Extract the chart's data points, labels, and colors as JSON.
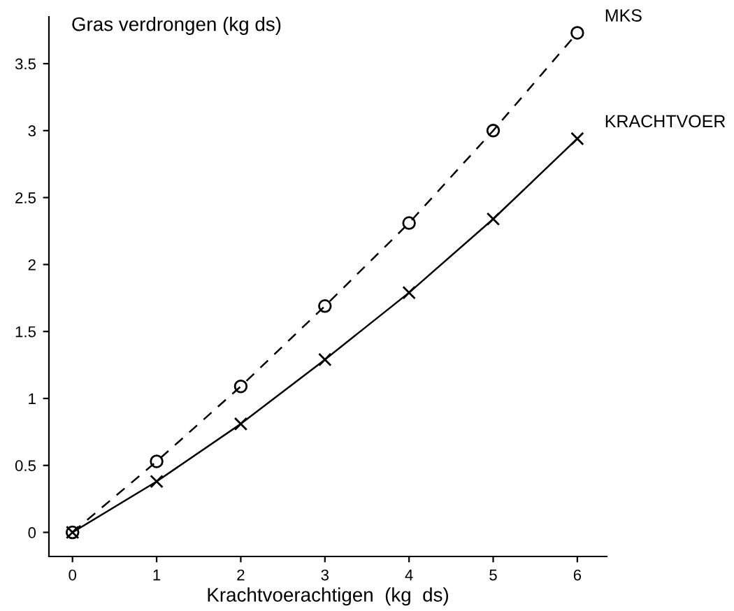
{
  "chart_data": {
    "type": "line",
    "xlabel": "Krachtvoerachtigen  (kg  ds)",
    "ylabel": "Gras verdrongen (kg ds)",
    "x": [
      0,
      1,
      2,
      3,
      4,
      5,
      6
    ],
    "series": [
      {
        "name": "MKS",
        "color": "#000000",
        "values": [
          0,
          0.53,
          1.09,
          1.69,
          2.31,
          3.0,
          3.73
        ],
        "marker": "circle",
        "line_style": "dashed"
      },
      {
        "name": "KRACHTVOER",
        "color": "#000000",
        "values": [
          0,
          0.38,
          0.81,
          1.29,
          1.79,
          2.34,
          2.94
        ],
        "marker": "cross",
        "line_style": "solid"
      }
    ],
    "xlim": [
      -0.28,
      6.35
    ],
    "ylim": [
      -0.18,
      3.85
    ],
    "xticks": [
      0,
      1,
      2,
      3,
      4,
      5,
      6
    ],
    "yticks": [
      0,
      0.5,
      1,
      1.5,
      2,
      2.5,
      3,
      3.5
    ],
    "grid": false,
    "legend": false
  }
}
